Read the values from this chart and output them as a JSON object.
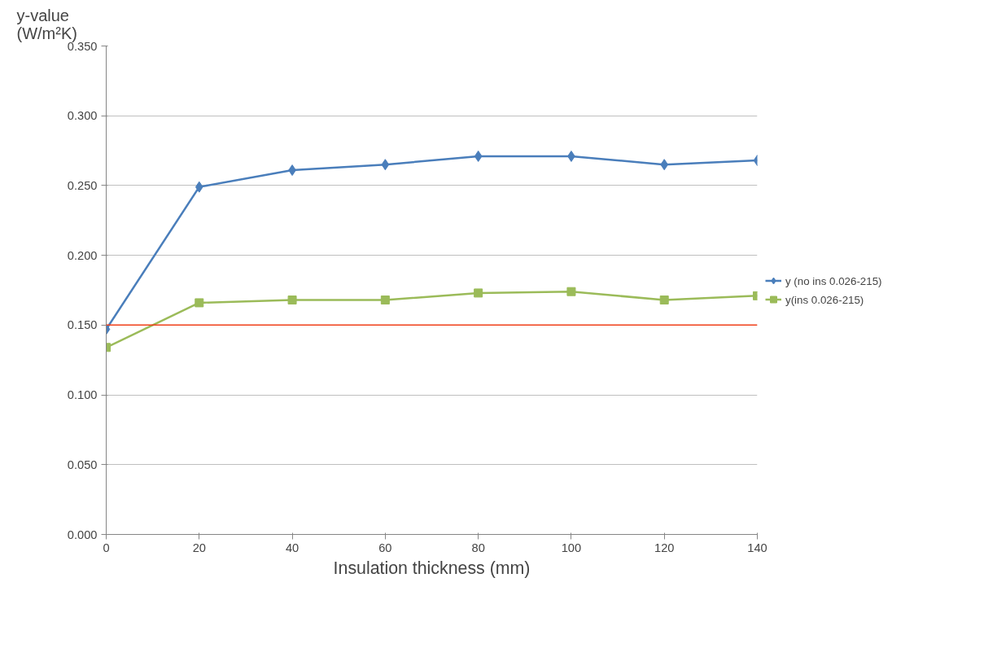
{
  "chart_data": {
    "type": "line",
    "xlabel": "Insulation thickness (mm)",
    "ylabel": "y-value\n(W/m²K)",
    "x": [
      0,
      20,
      40,
      60,
      80,
      100,
      120,
      140
    ],
    "series": [
      {
        "name": "y (no ins 0.026-215)",
        "color": "#4a7ebb",
        "marker": "diamond",
        "values": [
          0.147,
          0.249,
          0.261,
          0.265,
          0.271,
          0.271,
          0.265,
          0.268
        ]
      },
      {
        "name": "y(ins 0.026-215)",
        "color": "#9bbb59",
        "marker": "square",
        "values": [
          0.134,
          0.166,
          0.168,
          0.168,
          0.173,
          0.174,
          0.168,
          0.171
        ]
      }
    ],
    "xlim": [
      0,
      140
    ],
    "xticks": [
      0,
      20,
      40,
      60,
      80,
      100,
      120,
      140
    ],
    "ylim": [
      0,
      0.35
    ],
    "yticks": [
      {
        "value": 0,
        "label": "0.000"
      },
      {
        "value": 0.05,
        "label": "0.050"
      },
      {
        "value": 0.1,
        "label": "0.100"
      },
      {
        "value": 0.15,
        "label": "0.150"
      },
      {
        "value": 0.2,
        "label": "0.200"
      },
      {
        "value": 0.25,
        "label": "0.250"
      },
      {
        "value": 0.3,
        "label": "0.300"
      },
      {
        "value": 0.35,
        "label": "0.350"
      }
    ],
    "ref_lines": [
      {
        "axis": "y",
        "value": 0.15,
        "color": "#f0401a"
      }
    ],
    "grid": "y",
    "legend": "right",
    "line_style": "solid"
  }
}
